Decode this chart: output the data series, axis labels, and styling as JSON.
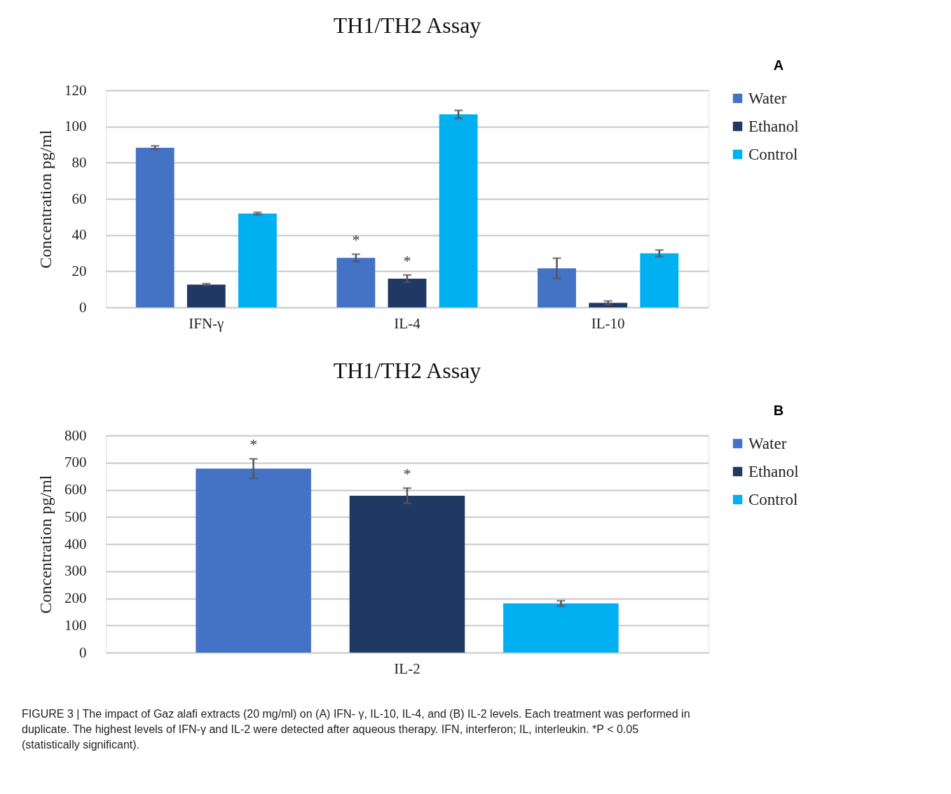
{
  "chart_data": [
    {
      "type": "bar",
      "title": "TH1/TH2 Assay",
      "ylabel": "Concentration pg/ml",
      "categories": [
        "IFN-γ",
        "IL-4",
        "IL-10"
      ],
      "series": [
        {
          "name": "Water",
          "color": "#4472c4",
          "values": [
            88.3,
            27.4,
            21.6
          ],
          "errors": [
            1,
            2,
            5.6
          ],
          "value_labels": [
            null,
            "*",
            null
          ]
        },
        {
          "name": "Ethanol",
          "color": "#203864",
          "values": [
            12.6,
            15.9,
            2.5
          ],
          "errors": [
            0.5,
            2,
            1
          ],
          "value_labels": [
            null,
            "*",
            null
          ]
        },
        {
          "name": "Control",
          "color": "#00b0f0",
          "values": [
            51.9,
            106.7,
            29.9
          ],
          "errors": [
            0.6,
            2.2,
            1.8
          ]
        }
      ],
      "ylim": [
        0,
        120
      ],
      "yticks": [
        0,
        20,
        40,
        60,
        80,
        100,
        120
      ],
      "grid": "y",
      "legend": "right",
      "annotations": [
        "A"
      ]
    },
    {
      "type": "bar",
      "title": "TH1/TH2 Assay",
      "ylabel": "Concentration pg/ml",
      "categories": [
        "IL-2"
      ],
      "series": [
        {
          "name": "Water",
          "color": "#4472c4",
          "values": [
            678
          ],
          "errors": [
            36
          ],
          "value_labels": [
            "*"
          ]
        },
        {
          "name": "Ethanol",
          "color": "#203864",
          "values": [
            578
          ],
          "errors": [
            28
          ],
          "value_labels": [
            "*"
          ]
        },
        {
          "name": "Control",
          "color": "#00b0f0",
          "values": [
            181
          ],
          "errors": [
            10
          ]
        }
      ],
      "ylim": [
        0,
        800
      ],
      "yticks": [
        0,
        100,
        200,
        300,
        400,
        500,
        600,
        700,
        800
      ],
      "grid": "y",
      "legend": "right",
      "annotations": [
        "B",
        "FIGURE 3 | The impact of Gaz alafi extracts (20 mg/ml) on (A) IFN- γ, IL-10, IL-4, and (B) IL-2 levels. Each treatment was performed in duplicate. The highest levels of IFN-γ and IL-2 were detected after aqueous therapy. IFN, interferon; IL, interleukin. *P < 0.05 (statistically significant)."
      ]
    }
  ]
}
